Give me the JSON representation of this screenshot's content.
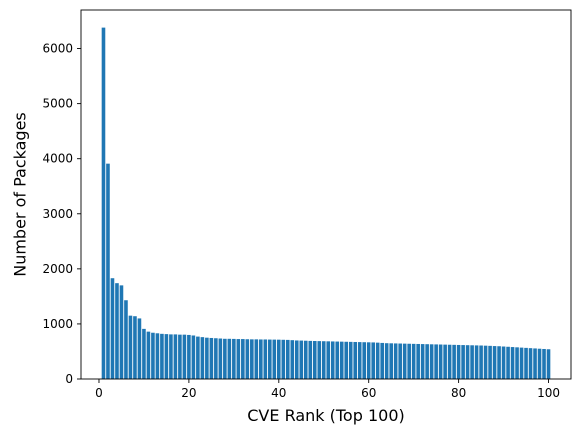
{
  "chart_data": {
    "type": "bar",
    "title": "",
    "xlabel": "CVE Rank (Top 100)",
    "ylabel": "Number of Packages",
    "xlim": [
      -4,
      105
    ],
    "ylim": [
      0,
      6700
    ],
    "xticks": [
      0,
      20,
      40,
      60,
      80,
      100
    ],
    "yticks": [
      0,
      1000,
      2000,
      3000,
      4000,
      5000,
      6000
    ],
    "grid": false,
    "bar_color": "#1f77b4",
    "x": [
      1,
      2,
      3,
      4,
      5,
      6,
      7,
      8,
      9,
      10,
      11,
      12,
      13,
      14,
      15,
      16,
      17,
      18,
      19,
      20,
      21,
      22,
      23,
      24,
      25,
      26,
      27,
      28,
      29,
      30,
      31,
      32,
      33,
      34,
      35,
      36,
      37,
      38,
      39,
      40,
      41,
      42,
      43,
      44,
      45,
      46,
      47,
      48,
      49,
      50,
      51,
      52,
      53,
      54,
      55,
      56,
      57,
      58,
      59,
      60,
      61,
      62,
      63,
      64,
      65,
      66,
      67,
      68,
      69,
      70,
      71,
      72,
      73,
      74,
      75,
      76,
      77,
      78,
      79,
      80,
      81,
      82,
      83,
      84,
      85,
      86,
      87,
      88,
      89,
      90,
      91,
      92,
      93,
      94,
      95,
      96,
      97,
      98,
      99,
      100
    ],
    "values": [
      6380,
      3910,
      1830,
      1740,
      1700,
      1430,
      1150,
      1140,
      1100,
      910,
      860,
      840,
      830,
      820,
      815,
      810,
      810,
      805,
      805,
      800,
      790,
      770,
      760,
      750,
      745,
      740,
      735,
      730,
      730,
      728,
      725,
      725,
      722,
      720,
      720,
      718,
      718,
      716,
      715,
      714,
      712,
      710,
      705,
      700,
      698,
      695,
      692,
      690,
      688,
      686,
      684,
      682,
      680,
      678,
      676,
      674,
      672,
      670,
      668,
      666,
      664,
      660,
      655,
      650,
      648,
      646,
      644,
      642,
      640,
      638,
      636,
      634,
      632,
      630,
      628,
      626,
      624,
      622,
      620,
      618,
      616,
      614,
      612,
      610,
      608,
      605,
      602,
      598,
      595,
      590,
      585,
      580,
      575,
      570,
      565,
      560,
      555,
      550,
      545,
      540
    ]
  }
}
